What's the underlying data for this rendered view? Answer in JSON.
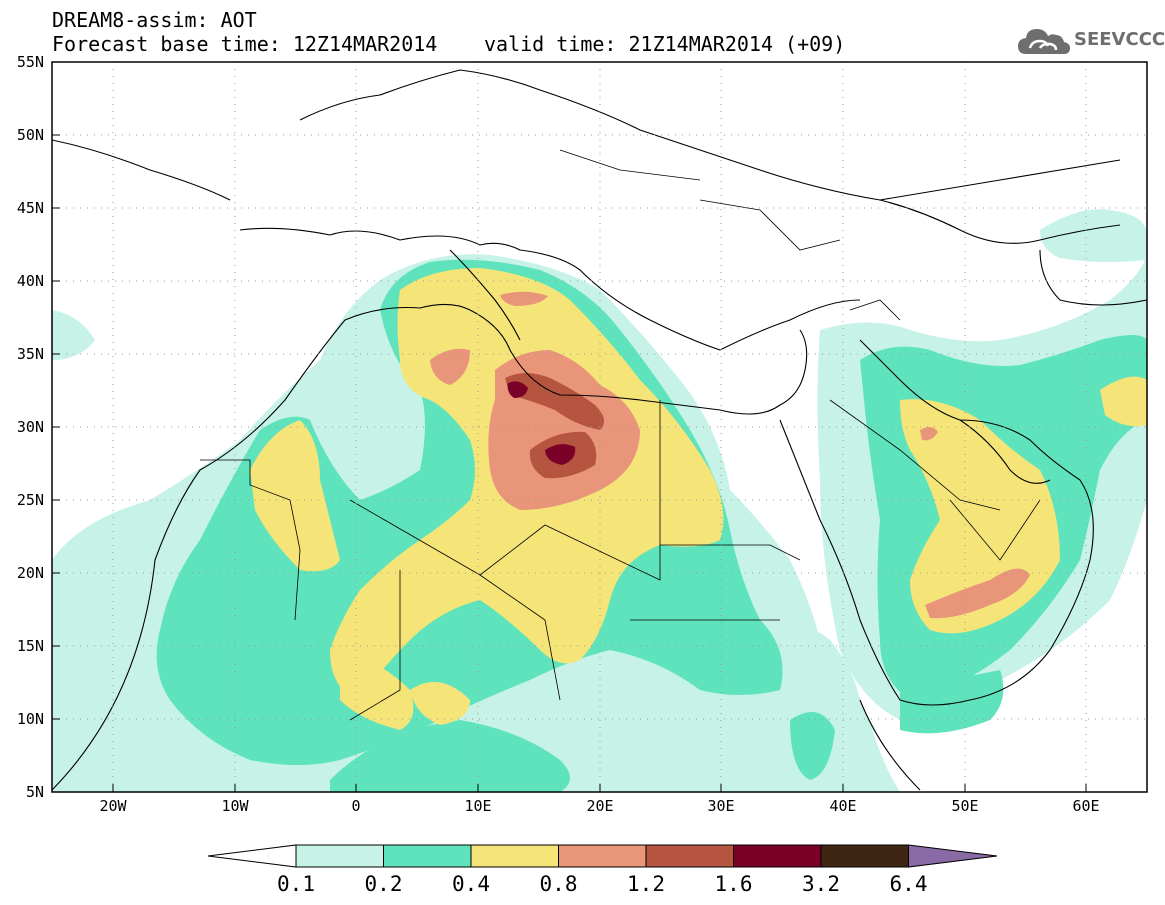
{
  "header": {
    "line1": "DREAM8-assim: AOT",
    "line2": "Forecast base time: 12Z14MAR2014",
    "line3": "valid time: 21Z14MAR2014 (+09)",
    "logo_text": "SEEVCCC"
  },
  "axes": {
    "lat_labels": [
      "55N",
      "50N",
      "45N",
      "40N",
      "35N",
      "30N",
      "25N",
      "20N",
      "15N",
      "10N",
      "5N"
    ],
    "lon_labels": [
      "20W",
      "10W",
      "0",
      "10E",
      "20E",
      "30E",
      "40E",
      "50E",
      "60E"
    ]
  },
  "colorbar": {
    "labels": [
      "0.1",
      "0.2",
      "0.4",
      "0.8",
      "1.2",
      "1.6",
      "3.2",
      "6.4"
    ],
    "colors": [
      "#ffffff",
      "#c6f2e8",
      "#5fe3bc",
      "#f5e579",
      "#e8957a",
      "#b5543f",
      "#7a0027",
      "#3f2513",
      "#8a6aa6"
    ]
  },
  "colors": {
    "c1": "#c6f2e8",
    "c2": "#5fe3bc",
    "c3": "#f5e579",
    "c4": "#e8957a",
    "c5": "#b5543f",
    "c6": "#7a0027",
    "border": "#000000",
    "grid": "#9a9a9a"
  }
}
